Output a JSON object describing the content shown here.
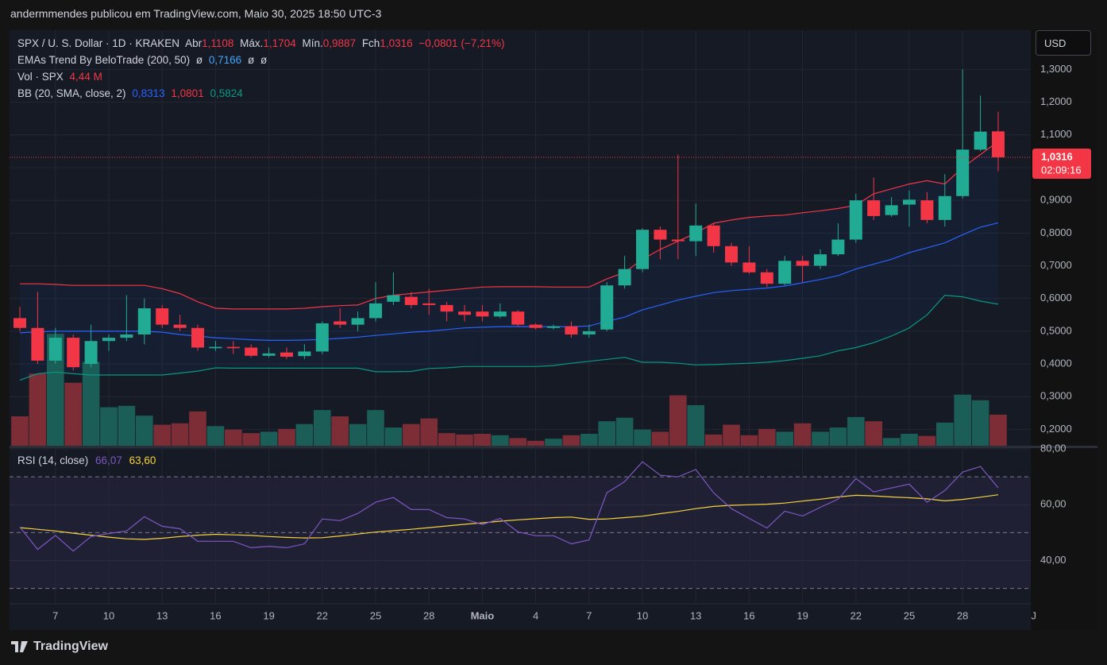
{
  "header": "andermmendes publicou em TradingView.com, Maio 30, 2025 18:50 UTC-3",
  "logo": "TradingView",
  "currency": "USD",
  "chart_data": {
    "type": "candlestick",
    "legend": {
      "symbol": "SPX / U. S. Dollar · 1D · KRAKEN",
      "open_label": "Abr",
      "open": "1,1108",
      "high_label": "Máx.",
      "high": "1,1704",
      "low_label": "Mín.",
      "low": "0,9887",
      "close_label": "Fch",
      "close": "1,0316",
      "change": "−0,0801 (−7,21%)",
      "ema_name": "EMAs Trend By BeloTrade (200, 50)",
      "ema_empty_1": "ø",
      "ema_value": "0,7166",
      "ema_empty_2": "ø",
      "ema_empty_3": "ø",
      "vol_name": "Vol · SPX",
      "bb_name": "BB (20, SMA, close, 2)"
    },
    "last_price_label": "1,0316",
    "countdown": "02:09:16",
    "categories": [
      null,
      null,
      "7",
      null,
      null,
      "10",
      null,
      null,
      "13",
      null,
      null,
      "16",
      null,
      null,
      "19",
      null,
      null,
      "22",
      null,
      null,
      "25",
      null,
      null,
      "28",
      null,
      null,
      "Maio",
      null,
      null,
      "4",
      null,
      null,
      "7",
      null,
      null,
      "10",
      null,
      null,
      "13",
      null,
      null,
      "16",
      null,
      null,
      "19",
      null,
      null,
      "22",
      null,
      null,
      "25",
      null,
      null,
      "28",
      null,
      null
    ],
    "next_period_label": "J",
    "open": [
      0.54,
      0.51,
      0.41,
      0.48,
      0.4,
      0.47,
      0.48,
      0.49,
      0.57,
      0.52,
      0.51,
      0.448,
      0.452,
      0.45,
      0.425,
      0.435,
      0.424,
      0.438,
      0.53,
      0.52,
      0.54,
      0.59,
      0.605,
      0.585,
      0.58,
      0.56,
      0.56,
      0.545,
      0.56,
      0.52,
      0.51,
      0.515,
      0.49,
      0.505,
      0.64,
      0.69,
      0.81,
      0.78,
      0.775,
      0.823,
      0.76,
      0.71,
      0.68,
      0.645,
      0.715,
      0.7,
      0.735,
      0.78,
      0.9,
      0.855,
      0.887,
      0.9,
      0.84,
      0.913,
      1.055,
      1.1108
    ],
    "high": [
      0.575,
      0.62,
      0.51,
      0.49,
      0.52,
      0.49,
      0.61,
      0.6,
      0.58,
      0.55,
      0.52,
      0.47,
      0.47,
      0.46,
      0.45,
      0.45,
      0.46,
      0.53,
      0.57,
      0.56,
      0.65,
      0.68,
      0.62,
      0.63,
      0.59,
      0.58,
      0.58,
      0.585,
      0.565,
      0.525,
      0.52,
      0.53,
      0.52,
      0.65,
      0.73,
      0.815,
      0.82,
      1.04,
      0.89,
      0.83,
      0.77,
      0.76,
      0.69,
      0.73,
      0.73,
      0.75,
      0.83,
      0.92,
      0.97,
      0.91,
      0.93,
      0.925,
      0.98,
      1.3,
      1.22,
      1.1704
    ],
    "low": [
      0.5,
      0.4,
      0.4,
      0.38,
      0.39,
      0.44,
      0.47,
      0.46,
      0.51,
      0.5,
      0.44,
      0.44,
      0.43,
      0.42,
      0.42,
      0.415,
      0.415,
      0.43,
      0.51,
      0.5,
      0.53,
      0.58,
      0.57,
      0.55,
      0.53,
      0.53,
      0.53,
      0.54,
      0.515,
      0.505,
      0.505,
      0.48,
      0.48,
      0.5,
      0.63,
      0.68,
      0.72,
      0.72,
      0.73,
      0.74,
      0.7,
      0.675,
      0.635,
      0.64,
      0.65,
      0.69,
      0.73,
      0.77,
      0.84,
      0.85,
      0.82,
      0.83,
      0.82,
      0.905,
      1.05,
      0.9887
    ],
    "close": [
      0.51,
      0.41,
      0.48,
      0.39,
      0.47,
      0.48,
      0.49,
      0.57,
      0.52,
      0.51,
      0.45,
      0.452,
      0.448,
      0.425,
      0.432,
      0.422,
      0.438,
      0.524,
      0.52,
      0.54,
      0.585,
      0.61,
      0.58,
      0.58,
      0.56,
      0.55,
      0.545,
      0.56,
      0.52,
      0.51,
      0.515,
      0.49,
      0.5,
      0.64,
      0.69,
      0.81,
      0.78,
      0.775,
      0.823,
      0.76,
      0.71,
      0.68,
      0.645,
      0.715,
      0.7,
      0.735,
      0.78,
      0.9,
      0.852,
      0.885,
      0.902,
      0.84,
      0.913,
      1.055,
      1.11,
      1.0316
    ],
    "up_color": "#22ab94",
    "down_color": "#f23645",
    "ylim": [
      0.15,
      1.42
    ],
    "yticks": [
      {
        "value": 0.2,
        "label": "0,2000"
      },
      {
        "value": 0.3,
        "label": "0,3000"
      },
      {
        "value": 0.4,
        "label": "0,4000"
      },
      {
        "value": 0.5,
        "label": "0,5000"
      },
      {
        "value": 0.6,
        "label": "0,6000"
      },
      {
        "value": 0.7,
        "label": "0,7000"
      },
      {
        "value": 0.8,
        "label": "0,8000"
      },
      {
        "value": 0.9,
        "label": "0,9000"
      },
      {
        "value": 1.0,
        "label": "1,0000"
      },
      {
        "value": 1.1,
        "label": "1,1000"
      },
      {
        "value": 1.2,
        "label": "1,2000"
      },
      {
        "value": 1.3,
        "label": "1,3000"
      }
    ],
    "grid": true,
    "volume": {
      "values": [
        4.2,
        10.3,
        16.0,
        9.0,
        12.0,
        5.5,
        5.7,
        4.3,
        3.0,
        3.2,
        4.9,
        2.8,
        2.3,
        1.8,
        2.0,
        2.4,
        3.1,
        5.1,
        4.2,
        3.1,
        5.1,
        2.6,
        3.1,
        3.9,
        1.8,
        1.6,
        1.7,
        1.5,
        1.1,
        0.7,
        1.0,
        1.5,
        1.7,
        3.5,
        4.0,
        2.3,
        2.0,
        7.2,
        5.8,
        1.6,
        3.0,
        1.5,
        2.4,
        2.0,
        3.2,
        2.0,
        2.6,
        4.1,
        3.5,
        1.1,
        1.7,
        1.4,
        3.3,
        7.3,
        6.5,
        4.44
      ],
      "value_labels": {
        "55": "4,44 M"
      },
      "ylim": [
        0,
        59.4
      ],
      "up_color": "#1b5e58",
      "down_color": "#7c2d35"
    },
    "bb": {
      "upper": [
        0.645,
        0.645,
        0.643,
        0.64,
        0.64,
        0.64,
        0.64,
        0.64,
        0.63,
        0.615,
        0.59,
        0.57,
        0.568,
        0.568,
        0.568,
        0.568,
        0.57,
        0.575,
        0.578,
        0.58,
        0.6,
        0.61,
        0.615,
        0.62,
        0.625,
        0.63,
        0.635,
        0.636,
        0.636,
        0.636,
        0.635,
        0.635,
        0.635,
        0.66,
        0.68,
        0.72,
        0.75,
        0.775,
        0.8,
        0.83,
        0.84,
        0.848,
        0.852,
        0.855,
        0.862,
        0.868,
        0.875,
        0.885,
        0.92,
        0.935,
        0.95,
        0.96,
        0.95,
        1.0,
        1.04,
        1.0801
      ],
      "basis": [
        0.495,
        0.498,
        0.5,
        0.5,
        0.5,
        0.5,
        0.5,
        0.5,
        0.497,
        0.49,
        0.485,
        0.48,
        0.477,
        0.474,
        0.472,
        0.472,
        0.473,
        0.475,
        0.478,
        0.482,
        0.487,
        0.492,
        0.497,
        0.5,
        0.505,
        0.51,
        0.512,
        0.514,
        0.514,
        0.514,
        0.514,
        0.514,
        0.516,
        0.53,
        0.543,
        0.565,
        0.58,
        0.595,
        0.607,
        0.618,
        0.624,
        0.628,
        0.632,
        0.638,
        0.648,
        0.658,
        0.67,
        0.69,
        0.705,
        0.72,
        0.74,
        0.755,
        0.77,
        0.795,
        0.818,
        0.8313
      ],
      "lower": [
        0.35,
        0.37,
        0.375,
        0.37,
        0.366,
        0.366,
        0.366,
        0.366,
        0.366,
        0.372,
        0.378,
        0.388,
        0.387,
        0.387,
        0.387,
        0.387,
        0.387,
        0.387,
        0.387,
        0.387,
        0.376,
        0.376,
        0.377,
        0.386,
        0.388,
        0.392,
        0.392,
        0.392,
        0.392,
        0.392,
        0.395,
        0.402,
        0.408,
        0.414,
        0.42,
        0.405,
        0.405,
        0.402,
        0.397,
        0.398,
        0.4,
        0.402,
        0.405,
        0.41,
        0.417,
        0.425,
        0.44,
        0.45,
        0.465,
        0.485,
        0.51,
        0.55,
        0.61,
        0.605,
        0.592,
        0.5824
      ],
      "basis_label": "0,8313",
      "upper_label": "1,0801",
      "lower_label": "0,5824",
      "basis_color": "#2962ff",
      "upper_color": "#f23645",
      "lower_color": "#089981"
    },
    "rsi": {
      "name": "RSI (14, close)",
      "values": [
        52,
        44,
        49,
        43.4,
        48.6,
        49.7,
        50.6,
        55.7,
        52.3,
        51.4,
        46.9,
        46.9,
        46.9,
        44.6,
        45.1,
        44.6,
        46,
        54.9,
        54.3,
        56.9,
        60.9,
        62.6,
        58.3,
        58.3,
        55.4,
        54.9,
        52.9,
        55.1,
        50.3,
        48.9,
        48.9,
        46,
        47.4,
        64.3,
        68.3,
        75.4,
        70.6,
        70,
        72.6,
        64.3,
        58.6,
        55.1,
        51.7,
        57.7,
        56,
        59.1,
        62,
        69.4,
        64.6,
        66,
        67.4,
        60.9,
        65.1,
        71.7,
        73.7,
        66.07
      ],
      "ma": [
        51.8,
        51.2,
        50.6,
        49.8,
        49.1,
        48.4,
        47.8,
        47.6,
        48.0,
        48.6,
        49.1,
        49.4,
        49.2,
        49.0,
        48.6,
        48.3,
        48.1,
        48.2,
        48.8,
        49.5,
        50.2,
        50.7,
        51.2,
        51.8,
        52.4,
        53.0,
        53.5,
        54.1,
        54.6,
        55.0,
        55.4,
        55.6,
        54.8,
        54.9,
        55.4,
        55.9,
        56.8,
        57.6,
        58.6,
        59.4,
        59.8,
        60.0,
        60.2,
        60.6,
        61.3,
        62.0,
        62.8,
        63.4,
        63.2,
        62.8,
        62.5,
        62.1,
        61.4,
        61.9,
        62.7,
        63.6
      ],
      "value_label": "66,07",
      "ma_label": "63,60",
      "color": "#7e57c2",
      "ma_color": "#f5d33f",
      "ylim": [
        24.5,
        80.3
      ],
      "yticks": [
        {
          "value": 40,
          "label": "40,00"
        },
        {
          "value": 60,
          "label": "60,00"
        },
        {
          "value": 80,
          "label": "80,00"
        }
      ],
      "levels": [
        30,
        50,
        70
      ]
    }
  }
}
